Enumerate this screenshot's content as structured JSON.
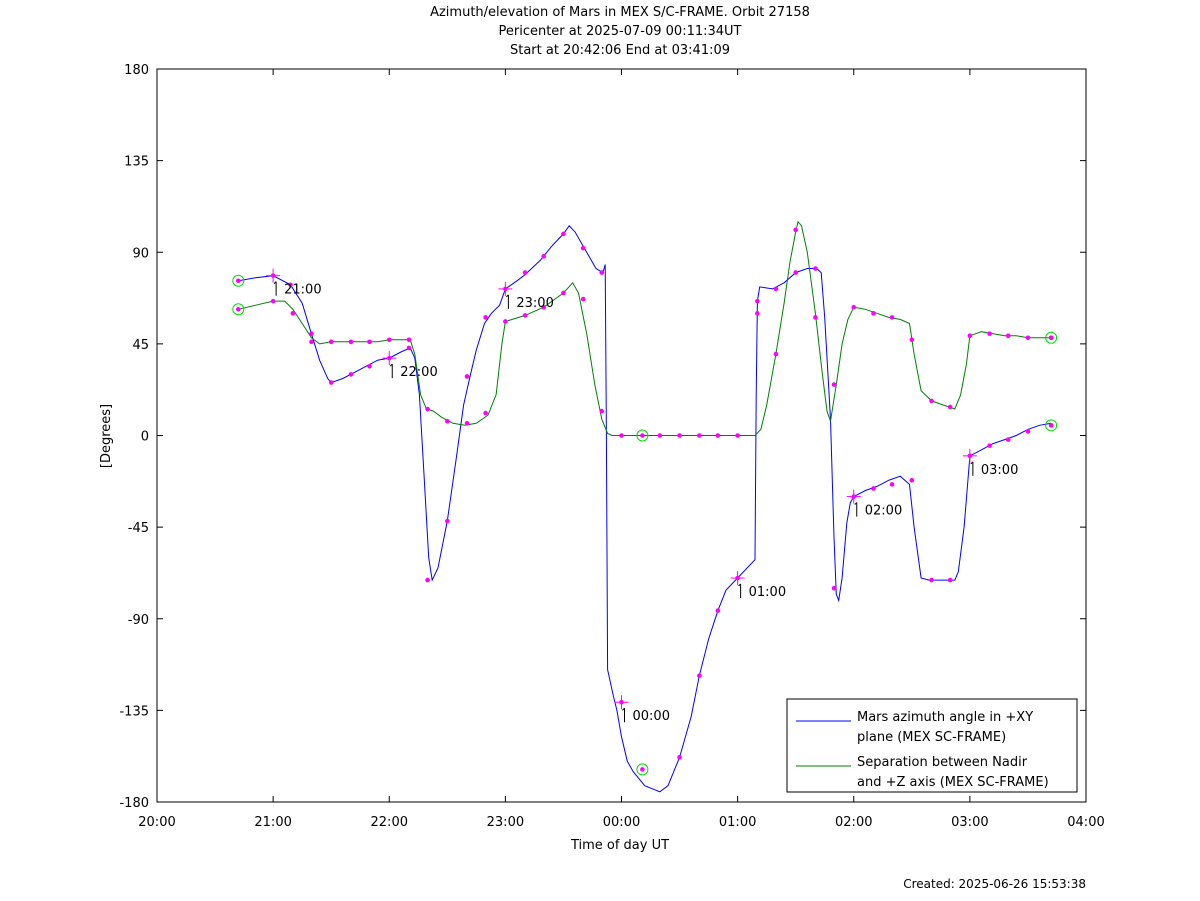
{
  "chart_data": {
    "type": "line",
    "title_lines": [
      "Azimuth/elevation of Mars in MEX S/C-FRAME.  Orbit 27158",
      "Pericenter at 2025-07-09 00:11:34UT",
      "Start at 20:42:06 End at 03:41:09"
    ],
    "xlabel": "Time of day UT",
    "ylabel": "[Degrees]",
    "x_ticks": [
      "20:00",
      "21:00",
      "22:00",
      "23:00",
      "00:00",
      "01:00",
      "02:00",
      "03:00",
      "04:00"
    ],
    "xlim_hours": [
      0,
      8
    ],
    "x_origin": "20:00",
    "y_ticks": [
      180,
      135,
      90,
      45,
      0,
      -45,
      -90,
      -135,
      -180
    ],
    "ylim": [
      -180,
      180
    ],
    "grid": false,
    "legend_position": "bottom-right",
    "hour_markers": [
      {
        "label": "21:00",
        "hour": 1.0,
        "series": 0
      },
      {
        "label": "22:00",
        "hour": 2.0,
        "series": 0
      },
      {
        "label": "23:00",
        "hour": 3.0,
        "series": 0
      },
      {
        "label": "00:00",
        "hour": 4.0,
        "series": 0
      },
      {
        "label": "01:00",
        "hour": 5.0,
        "series": 0
      },
      {
        "label": "02:00",
        "hour": 6.0,
        "series": 0
      },
      {
        "label": "03:00",
        "hour": 7.0,
        "series": 0
      }
    ],
    "series": [
      {
        "name": "Mars azimuth angle in +XY plane (MEX SC-FRAME)",
        "legend_lines": [
          "Mars azimuth angle in +XY",
          "plane (MEX SC-FRAME)"
        ],
        "color": "#0000ff",
        "points": [
          [
            0.7,
            76
          ],
          [
            0.85,
            77.5
          ],
          [
            1.0,
            78.5
          ],
          [
            1.15,
            74
          ],
          [
            1.25,
            65
          ],
          [
            1.33,
            50
          ],
          [
            1.4,
            37
          ],
          [
            1.47,
            28
          ],
          [
            1.5,
            26
          ],
          [
            1.6,
            28
          ],
          [
            1.7,
            31
          ],
          [
            1.8,
            34
          ],
          [
            1.9,
            37
          ],
          [
            2.0,
            38
          ],
          [
            2.1,
            41
          ],
          [
            2.18,
            43
          ],
          [
            2.22,
            38
          ],
          [
            2.26,
            20
          ],
          [
            2.3,
            -20
          ],
          [
            2.34,
            -60
          ],
          [
            2.37,
            -71
          ],
          [
            2.42,
            -65
          ],
          [
            2.5,
            -42
          ],
          [
            2.58,
            -10
          ],
          [
            2.64,
            15
          ],
          [
            2.7,
            30
          ],
          [
            2.75,
            42
          ],
          [
            2.82,
            55
          ],
          [
            2.88,
            60
          ],
          [
            2.95,
            64
          ],
          [
            3.0,
            72
          ],
          [
            3.1,
            76
          ],
          [
            3.17,
            79
          ],
          [
            3.3,
            86
          ],
          [
            3.4,
            93
          ],
          [
            3.5,
            99
          ],
          [
            3.55,
            103
          ],
          [
            3.6,
            100
          ],
          [
            3.7,
            90
          ],
          [
            3.78,
            82
          ],
          [
            3.84,
            80
          ],
          [
            3.86,
            84
          ],
          [
            3.87,
            0
          ],
          [
            3.88,
            -115
          ],
          [
            3.93,
            -128
          ],
          [
            3.96,
            -135
          ],
          [
            4.0,
            -148
          ],
          [
            4.05,
            -160
          ],
          [
            4.1,
            -165
          ],
          [
            4.2,
            -172
          ],
          [
            4.33,
            -175
          ],
          [
            4.4,
            -172
          ],
          [
            4.5,
            -158
          ],
          [
            4.6,
            -138
          ],
          [
            4.67,
            -118
          ],
          [
            4.75,
            -100
          ],
          [
            4.83,
            -86
          ],
          [
            4.9,
            -76
          ],
          [
            5.0,
            -70
          ],
          [
            5.15,
            -61
          ],
          [
            5.16,
            20
          ],
          [
            5.17,
            66
          ],
          [
            5.19,
            73
          ],
          [
            5.3,
            72
          ],
          [
            5.4,
            75
          ],
          [
            5.5,
            80
          ],
          [
            5.6,
            82
          ],
          [
            5.68,
            82
          ],
          [
            5.72,
            80
          ],
          [
            5.75,
            58
          ],
          [
            5.78,
            28
          ],
          [
            5.8,
            8
          ],
          [
            5.83,
            -50
          ],
          [
            5.85,
            -78
          ],
          [
            5.87,
            -81
          ],
          [
            5.9,
            -70
          ],
          [
            5.94,
            -43
          ],
          [
            5.97,
            -33
          ],
          [
            6.0,
            -30
          ],
          [
            6.1,
            -27
          ],
          [
            6.2,
            -25
          ],
          [
            6.3,
            -22
          ],
          [
            6.4,
            -20
          ],
          [
            6.48,
            -24
          ],
          [
            6.52,
            -45
          ],
          [
            6.58,
            -70
          ],
          [
            6.65,
            -71
          ],
          [
            6.75,
            -71
          ],
          [
            6.87,
            -71
          ],
          [
            6.9,
            -67
          ],
          [
            6.95,
            -45
          ],
          [
            7.0,
            -10
          ],
          [
            7.1,
            -7
          ],
          [
            7.2,
            -4
          ],
          [
            7.3,
            -2
          ],
          [
            7.4,
            0
          ],
          [
            7.5,
            3
          ],
          [
            7.6,
            5
          ],
          [
            7.7,
            6
          ]
        ],
        "markers": [
          [
            1.0,
            78.5
          ],
          [
            1.15,
            74
          ],
          [
            1.33,
            50
          ],
          [
            1.5,
            26
          ],
          [
            1.67,
            30
          ],
          [
            1.83,
            34
          ],
          [
            2.0,
            38
          ],
          [
            2.17,
            43
          ],
          [
            2.33,
            -71
          ],
          [
            2.5,
            -42
          ],
          [
            2.67,
            29
          ],
          [
            2.83,
            58
          ],
          [
            3.0,
            72
          ],
          [
            3.17,
            80
          ],
          [
            3.33,
            88
          ],
          [
            3.5,
            99
          ],
          [
            3.67,
            92
          ],
          [
            3.83,
            80
          ],
          [
            4.0,
            -131
          ],
          [
            4.5,
            -158
          ],
          [
            4.67,
            -118
          ],
          [
            4.83,
            -86
          ],
          [
            5.0,
            -70
          ],
          [
            5.17,
            66
          ],
          [
            5.33,
            72
          ],
          [
            5.5,
            80
          ],
          [
            5.67,
            82
          ],
          [
            5.83,
            -75
          ],
          [
            6.0,
            -30
          ],
          [
            6.17,
            -26
          ],
          [
            6.33,
            -24
          ],
          [
            6.5,
            -22
          ],
          [
            6.67,
            -71
          ],
          [
            6.83,
            -71
          ],
          [
            7.0,
            -10
          ],
          [
            7.17,
            -5
          ],
          [
            7.33,
            -2
          ],
          [
            7.5,
            2
          ],
          [
            7.7,
            5
          ]
        ],
        "circle_markers": [
          [
            0.7,
            76
          ],
          [
            4.18,
            -164
          ],
          [
            7.7,
            5
          ]
        ]
      },
      {
        "name": "Separation between Nadir and +Z axis (MEX SC-FRAME)",
        "legend_lines": [
          "Separation between Nadir",
          "and +Z axis (MEX SC-FRAME)"
        ],
        "color": "#008000",
        "points": [
          [
            0.7,
            62
          ],
          [
            0.85,
            64
          ],
          [
            1.0,
            66
          ],
          [
            1.1,
            66
          ],
          [
            1.17,
            62
          ],
          [
            1.25,
            55
          ],
          [
            1.33,
            48
          ],
          [
            1.4,
            45
          ],
          [
            1.5,
            46
          ],
          [
            1.7,
            46
          ],
          [
            1.9,
            46
          ],
          [
            2.0,
            47
          ],
          [
            2.18,
            47
          ],
          [
            2.22,
            40
          ],
          [
            2.27,
            20
          ],
          [
            2.32,
            13
          ],
          [
            2.38,
            12
          ],
          [
            2.45,
            9
          ],
          [
            2.55,
            6
          ],
          [
            2.65,
            5
          ],
          [
            2.75,
            6
          ],
          [
            2.85,
            10
          ],
          [
            2.92,
            20
          ],
          [
            2.97,
            45
          ],
          [
            3.0,
            56
          ],
          [
            3.17,
            59
          ],
          [
            3.33,
            63
          ],
          [
            3.5,
            70
          ],
          [
            3.58,
            75
          ],
          [
            3.63,
            70
          ],
          [
            3.7,
            50
          ],
          [
            3.77,
            25
          ],
          [
            3.83,
            8
          ],
          [
            3.88,
            1
          ],
          [
            3.92,
            0
          ],
          [
            4.2,
            0
          ],
          [
            4.5,
            0
          ],
          [
            5.0,
            0
          ],
          [
            5.15,
            0
          ],
          [
            5.2,
            3
          ],
          [
            5.25,
            15
          ],
          [
            5.33,
            40
          ],
          [
            5.4,
            65
          ],
          [
            5.45,
            85
          ],
          [
            5.5,
            100
          ],
          [
            5.52,
            105
          ],
          [
            5.55,
            103
          ],
          [
            5.6,
            90
          ],
          [
            5.67,
            60
          ],
          [
            5.73,
            30
          ],
          [
            5.77,
            12
          ],
          [
            5.8,
            7
          ],
          [
            5.85,
            25
          ],
          [
            5.9,
            45
          ],
          [
            5.95,
            57
          ],
          [
            6.0,
            63
          ],
          [
            6.1,
            62
          ],
          [
            6.2,
            60
          ],
          [
            6.3,
            58
          ],
          [
            6.4,
            57
          ],
          [
            6.48,
            55
          ],
          [
            6.52,
            40
          ],
          [
            6.58,
            22
          ],
          [
            6.67,
            17
          ],
          [
            6.77,
            15
          ],
          [
            6.87,
            13
          ],
          [
            6.92,
            20
          ],
          [
            6.97,
            35
          ],
          [
            7.0,
            49
          ],
          [
            7.1,
            51
          ],
          [
            7.2,
            50
          ],
          [
            7.3,
            49
          ],
          [
            7.4,
            49
          ],
          [
            7.5,
            48
          ],
          [
            7.6,
            48
          ],
          [
            7.7,
            48
          ]
        ],
        "markers": [
          [
            1.0,
            66
          ],
          [
            1.17,
            60
          ],
          [
            1.33,
            46
          ],
          [
            1.5,
            46
          ],
          [
            1.67,
            46
          ],
          [
            1.83,
            46
          ],
          [
            2.0,
            47
          ],
          [
            2.17,
            47
          ],
          [
            2.33,
            13
          ],
          [
            2.5,
            7
          ],
          [
            2.67,
            6
          ],
          [
            2.83,
            11
          ],
          [
            3.0,
            56
          ],
          [
            3.17,
            59
          ],
          [
            3.33,
            63
          ],
          [
            3.5,
            70
          ],
          [
            3.67,
            67
          ],
          [
            3.83,
            12
          ],
          [
            4.0,
            0
          ],
          [
            4.33,
            0
          ],
          [
            4.5,
            0
          ],
          [
            4.67,
            0
          ],
          [
            4.83,
            0
          ],
          [
            5.0,
            0
          ],
          [
            5.17,
            60
          ],
          [
            5.33,
            40
          ],
          [
            5.5,
            101
          ],
          [
            5.67,
            58
          ],
          [
            5.83,
            25
          ],
          [
            6.0,
            63
          ],
          [
            6.17,
            60
          ],
          [
            6.33,
            58
          ],
          [
            6.5,
            47
          ],
          [
            6.67,
            17
          ],
          [
            6.83,
            14
          ],
          [
            7.0,
            49
          ],
          [
            7.17,
            50
          ],
          [
            7.33,
            49
          ],
          [
            7.5,
            48
          ],
          [
            7.7,
            48
          ]
        ],
        "circle_markers": [
          [
            0.7,
            62
          ],
          [
            4.18,
            0
          ],
          [
            7.7,
            48
          ]
        ]
      }
    ]
  },
  "footer": "Created: 2025-06-26 15:53:38"
}
